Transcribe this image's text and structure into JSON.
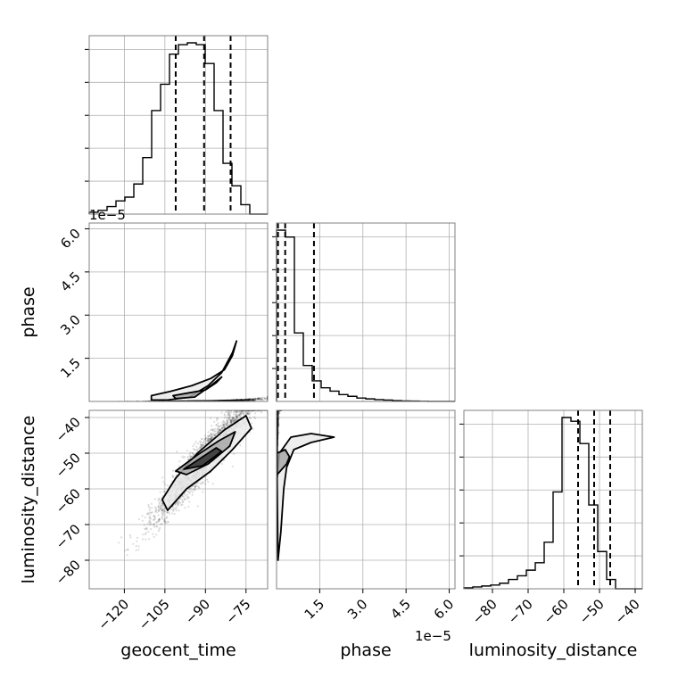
{
  "chart_data": {
    "type": "corner",
    "parameters": [
      "geocent_time",
      "phase",
      "luminosity_distance"
    ],
    "axis_labels": {
      "geocent_time": "geocent_time",
      "phase": "phase",
      "luminosity_distance": "luminosity_distance"
    },
    "offset_text": "1e−5",
    "ranges": {
      "geocent_time": [
        -133,
        -67
      ],
      "phase": [
        0,
        6.2
      ],
      "luminosity_distance": [
        -88,
        -38
      ]
    },
    "ticks": {
      "geocent_time": {
        "values": [
          -120,
          -105,
          -90,
          -75
        ],
        "labels": [
          "−120",
          "−105",
          "−90",
          "−75"
        ]
      },
      "phase": {
        "values": [
          1.5,
          3.0,
          4.5,
          6.0
        ],
        "labels": [
          "1.5",
          "3.0",
          "4.5",
          "6.0"
        ]
      },
      "luminosity_distance": {
        "values": [
          -80,
          -70,
          -60,
          -50,
          -40
        ],
        "labels": [
          "−80",
          "−70",
          "−60",
          "−50",
          "−40"
        ]
      }
    },
    "grid": true,
    "histograms": {
      "geocent_time": {
        "bin_start": -133,
        "bin_width": 3.3,
        "counts": [
          1,
          2,
          4,
          7,
          9,
          16,
          30,
          55,
          69,
          85,
          90,
          91,
          90,
          80,
          55,
          27,
          15,
          5,
          0,
          0
        ],
        "quantiles": [
          -101,
          -90.5,
          -80.7
        ]
      },
      "phase": {
        "bin_start": 0,
        "bin_width": 0.31,
        "counts": [
          100,
          96,
          40,
          21,
          12,
          8,
          6,
          4,
          3,
          2,
          1.5,
          1.1,
          0.8,
          0.5,
          0.3,
          0.2,
          0.1,
          0.05,
          0.02,
          0.01
        ],
        "quantiles": [
          0.05,
          0.3,
          1.3
        ]
      },
      "luminosity_distance": {
        "bin_start": -88,
        "bin_width": 2.5,
        "counts": [
          0.5,
          1,
          1.5,
          2,
          3,
          5,
          7,
          10,
          14,
          25,
          52,
          92,
          90,
          78,
          45,
          20,
          5,
          0,
          0,
          0
        ],
        "quantiles": [
          -56,
          -51.5,
          -47
        ]
      }
    },
    "contours": {
      "phase_vs_geocent_time": [
        [
          [
            -110,
            0.2
          ],
          [
            -103,
            0.35
          ],
          [
            -95,
            0.55
          ],
          [
            -88,
            0.8
          ],
          [
            -83,
            1.1
          ],
          [
            -80,
            1.6
          ],
          [
            -78.5,
            2.1
          ],
          [
            -80,
            1.7
          ],
          [
            -84,
            1.0
          ],
          [
            -89,
            0.55
          ],
          [
            -96,
            0.15
          ],
          [
            -104,
            0.05
          ],
          [
            -110,
            0.05
          ]
        ],
        [
          [
            -102,
            0.2
          ],
          [
            -96,
            0.3
          ],
          [
            -90,
            0.4
          ],
          [
            -86,
            0.65
          ],
          [
            -84,
            0.85
          ],
          [
            -88,
            0.55
          ],
          [
            -94,
            0.15
          ],
          [
            -101,
            0.1
          ]
        ]
      ],
      "luminosity_distance_vs_geocent_time": [
        [
          [
            -106,
            -63
          ],
          [
            -101,
            -57
          ],
          [
            -93,
            -50
          ],
          [
            -83,
            -43.5
          ],
          [
            -75,
            -39.5
          ],
          [
            -73,
            -43
          ],
          [
            -80,
            -49
          ],
          [
            -88,
            -55
          ],
          [
            -97,
            -60
          ],
          [
            -104,
            -66
          ]
        ],
        [
          [
            -101,
            -55
          ],
          [
            -93,
            -50.5
          ],
          [
            -85,
            -46.5
          ],
          [
            -79,
            -44
          ],
          [
            -81,
            -48
          ],
          [
            -89,
            -53
          ],
          [
            -97,
            -56
          ]
        ],
        [
          [
            -98,
            -54.5
          ],
          [
            -92,
            -51.5
          ],
          [
            -86,
            -48.5
          ],
          [
            -84,
            -49.5
          ],
          [
            -91,
            -53.5
          ]
        ]
      ],
      "luminosity_distance_vs_phase": [
        [
          [
            0.02,
            -57
          ],
          [
            0.1,
            -50
          ],
          [
            0.5,
            -45.5
          ],
          [
            1.2,
            -44.5
          ],
          [
            2.0,
            -45.5
          ],
          [
            1.2,
            -47
          ],
          [
            0.6,
            -49
          ],
          [
            0.35,
            -54
          ],
          [
            0.25,
            -60
          ],
          [
            0.15,
            -72
          ],
          [
            0.05,
            -80
          ]
        ],
        [
          [
            0.02,
            -56
          ],
          [
            0.35,
            -53
          ],
          [
            0.45,
            -51
          ],
          [
            0.3,
            -49
          ],
          [
            0.02,
            -50
          ]
        ]
      ]
    }
  }
}
